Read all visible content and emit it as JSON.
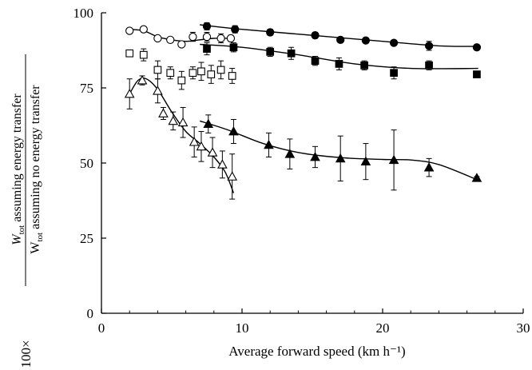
{
  "chart_data": {
    "type": "scatter",
    "title": "",
    "xlabel": "Average forward speed (km h⁻¹)",
    "ylabel_main": "W",
    "ylabel_sub": "tot",
    "ylabel_num_rest": " assuming energy transfer",
    "ylabel_den_rest": " assuming no energy transfer",
    "ylabel_prefix": "100×",
    "xlim": [
      0,
      30
    ],
    "ylim": [
      0,
      100
    ],
    "xticks": [
      "0",
      "10",
      "20",
      "30"
    ],
    "yticks": [
      "0",
      "25",
      "50",
      "75",
      "100"
    ],
    "grid": false,
    "series": [
      {
        "marker": "circle-filled",
        "x": [
          7.5,
          9.5,
          12,
          15.2,
          17,
          18.8,
          20.8,
          23.3,
          26.7
        ],
        "y": [
          95.5,
          94.5,
          93.5,
          92.5,
          91,
          90.8,
          90,
          89,
          88.5
        ],
        "err": [
          1.2,
          1.2,
          1,
          1,
          0.8,
          0.8,
          0.8,
          1.5,
          0.8
        ],
        "fit": [
          [
            7,
            96
          ],
          [
            10,
            94.5
          ],
          [
            15,
            92.5
          ],
          [
            20,
            90.5
          ],
          [
            24,
            89
          ],
          [
            26.8,
            88.8
          ]
        ]
      },
      {
        "marker": "square-filled",
        "x": [
          7.5,
          9.4,
          12,
          13.5,
          15.2,
          16.9,
          18.7,
          20.8,
          23.3,
          26.7
        ],
        "y": [
          88,
          88.5,
          87,
          86.5,
          84,
          83,
          82.5,
          80,
          82.5,
          79.5
        ],
        "err": [
          2,
          1.5,
          1.5,
          2,
          1.5,
          2,
          1.5,
          2,
          1.5,
          1
        ],
        "fit": [
          [
            7,
            89.5
          ],
          [
            10,
            88.5
          ],
          [
            14,
            86
          ],
          [
            18,
            83
          ],
          [
            22,
            81.5
          ],
          [
            26.8,
            81.5
          ]
        ]
      },
      {
        "marker": "circle-open",
        "x": [
          2,
          3,
          4,
          4.9,
          5.7,
          6.5,
          7.5,
          8.5,
          9.2
        ],
        "y": [
          94,
          94.5,
          91.5,
          91,
          89.5,
          92,
          92,
          91.5,
          91.5
        ],
        "err": [
          0.8,
          0.8,
          0.8,
          0.8,
          0.8,
          1.5,
          1.5,
          1.5,
          1
        ],
        "fit": [
          [
            2,
            94.5
          ],
          [
            3,
            94
          ],
          [
            4,
            92
          ],
          [
            5,
            91
          ],
          [
            6,
            90.5
          ],
          [
            7,
            91
          ],
          [
            8,
            91.5
          ],
          [
            9.2,
            91.5
          ]
        ]
      },
      {
        "marker": "square-open",
        "x": [
          2,
          3,
          4,
          4.9,
          5.7,
          6.5,
          7.1,
          7.8,
          8.5,
          9.3
        ],
        "y": [
          86.5,
          86,
          81,
          80,
          77.5,
          80,
          80.5,
          79.5,
          81,
          79
        ],
        "err": [
          1,
          2,
          3,
          2,
          3,
          2,
          3,
          3,
          3,
          2.5
        ],
        "fit": []
      },
      {
        "marker": "triangle-filled",
        "x": [
          7.6,
          9.4,
          11.9,
          13.4,
          15.2,
          17,
          18.8,
          20.8,
          23.3,
          26.7
        ],
        "y": [
          63,
          60.5,
          56,
          53,
          52,
          51.5,
          50.5,
          51,
          48.5,
          45
        ],
        "err": [
          3,
          4,
          4,
          5,
          3.5,
          7.5,
          6,
          10,
          3,
          0.5
        ],
        "fit": [
          [
            7,
            64
          ],
          [
            9,
            61
          ],
          [
            11.5,
            56.5
          ],
          [
            14,
            53.5
          ],
          [
            17,
            51.8
          ],
          [
            20,
            51.2
          ],
          [
            22,
            51
          ],
          [
            24,
            49.5
          ],
          [
            26.7,
            44.5
          ]
        ]
      },
      {
        "marker": "triangle-open",
        "x": [
          2,
          2.9,
          4,
          4.4,
          5.1,
          5.8,
          6.6,
          7.1,
          7.9,
          8.6,
          9.3
        ],
        "y": [
          73,
          77.5,
          74,
          66.5,
          64,
          63.5,
          57,
          55.5,
          53.5,
          49.5,
          45.5
        ],
        "err": [
          5,
          1.5,
          4,
          2,
          3,
          5,
          5,
          5,
          5,
          4.5,
          7.5
        ],
        "fit": [
          [
            2,
            73
          ],
          [
            2.6,
            77.5
          ],
          [
            3.2,
            78
          ],
          [
            4,
            74.5
          ],
          [
            5,
            67
          ],
          [
            6,
            60.5
          ],
          [
            7,
            56.5
          ],
          [
            8,
            52
          ],
          [
            8.8,
            47
          ],
          [
            9.4,
            40
          ]
        ]
      }
    ]
  }
}
